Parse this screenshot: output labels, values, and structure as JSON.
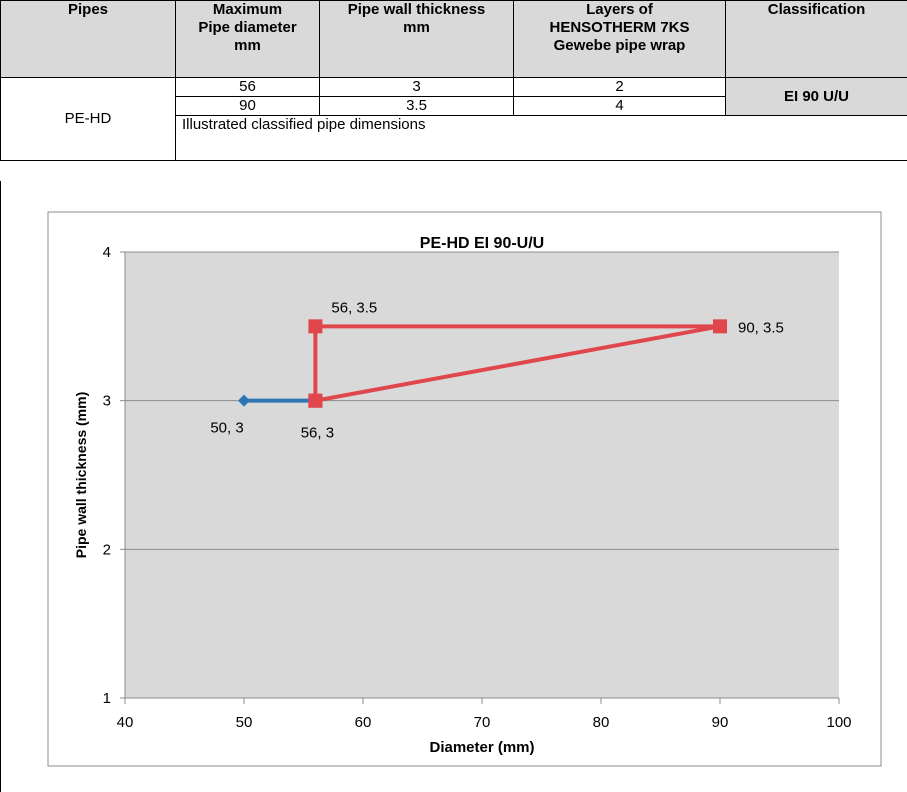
{
  "table": {
    "headers": [
      "Pipes",
      "Maximum Pipe diameter mm",
      "Pipe wall thickness mm",
      "Layers of HENSOTHERM 7KS Gewebe pipe wrap",
      "Classification"
    ],
    "header_lines": [
      [
        "Pipes"
      ],
      [
        "Maximum",
        "Pipe diameter",
        "mm"
      ],
      [
        "Pipe wall thickness",
        "mm"
      ],
      [
        "Layers of",
        "HENSOTHERM 7KS",
        "Gewebe pipe wrap"
      ],
      [
        "Classification"
      ]
    ],
    "pipe": "PE-HD",
    "rows": [
      {
        "diameter": "56",
        "thickness": "3",
        "layers": "2"
      },
      {
        "diameter": "90",
        "thickness": "3.5",
        "layers": "4"
      }
    ],
    "classification": "EI 90 U/U",
    "note": "Illustrated classified pipe dimensions"
  },
  "chart_data": {
    "type": "scatter",
    "title": "PE-HD EI 90-U/U",
    "xlabel": "Diameter (mm)",
    "ylabel": "Pipe wall thickness  (mm)",
    "xlim": [
      40,
      100
    ],
    "ylim": [
      1,
      4
    ],
    "xticks": [
      "40",
      "50",
      "60",
      "70",
      "80",
      "90",
      "100"
    ],
    "yticks": [
      "1",
      "2",
      "3",
      "4"
    ],
    "grid": "horizontal",
    "series": [
      {
        "color": "#2e75b6",
        "marker": "diamond",
        "x": [
          50,
          56
        ],
        "y": [
          3,
          3
        ],
        "labels": [
          "50, 3",
          ""
        ]
      },
      {
        "color": "#e0474c",
        "marker": "square",
        "x": [
          56,
          56,
          90,
          56
        ],
        "y": [
          3,
          3.5,
          3.5,
          3
        ],
        "labels": [
          "56, 3",
          "56, 3.5",
          "90, 3.5",
          ""
        ]
      }
    ]
  }
}
